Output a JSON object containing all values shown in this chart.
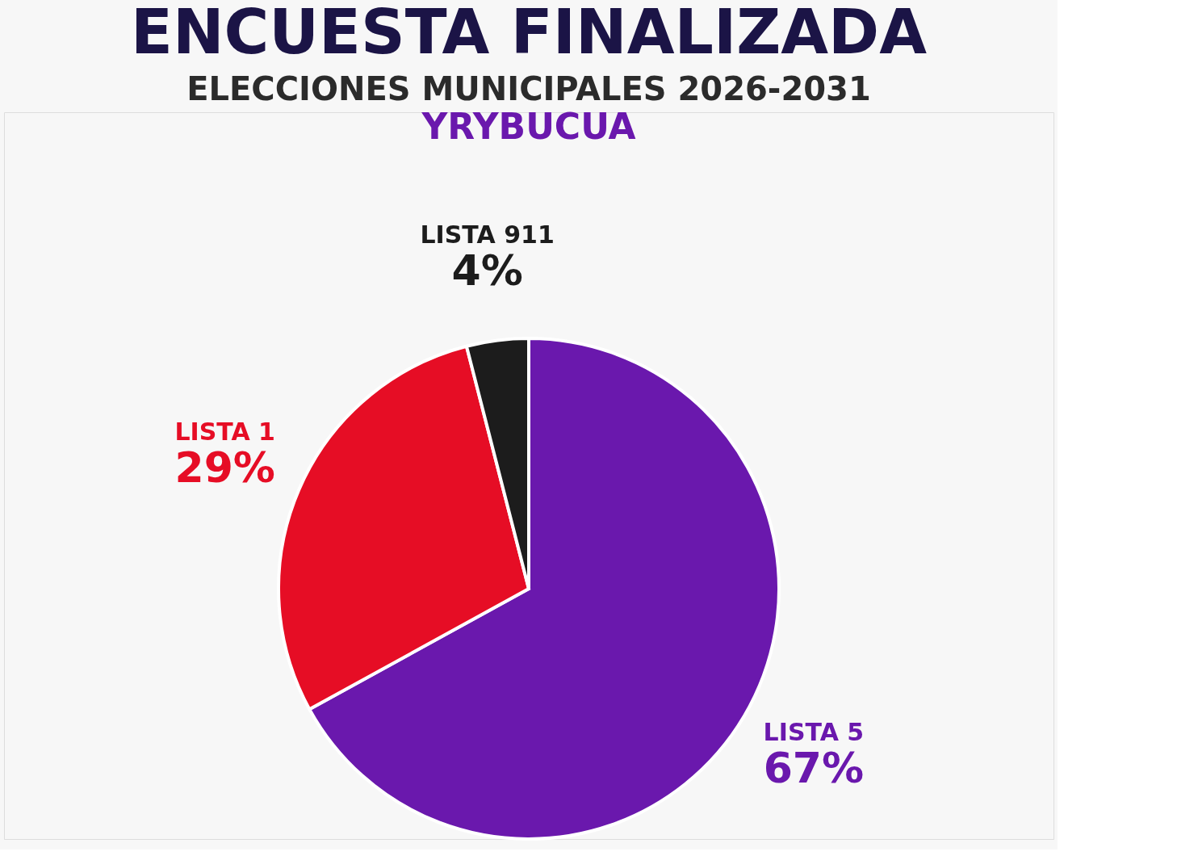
{
  "chart_data": {
    "type": "pie",
    "title": "ENCUESTA FINALIZADA",
    "subtitle": "ELECCIONES MUNICIPALES 2026-2031",
    "annotations": [
      "YRYBUCUA"
    ],
    "categories": [
      "LISTA 5",
      "LISTA 1",
      "LISTA 911"
    ],
    "values": [
      67,
      29,
      4
    ],
    "colors": [
      "#6a18ad",
      "#e60d25",
      "#1c1c1c"
    ],
    "value_labels": [
      "67%",
      "29%",
      "4%"
    ],
    "legend": false
  }
}
